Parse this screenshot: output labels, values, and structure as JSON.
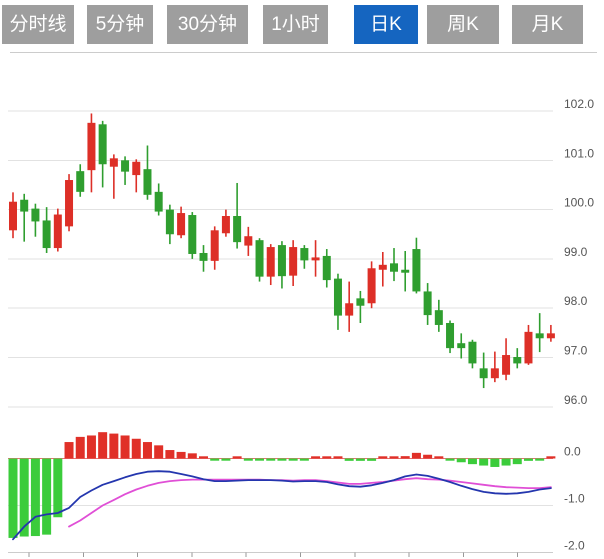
{
  "tabs": {
    "items": [
      {
        "label": "分时线",
        "selected": false
      },
      {
        "label": "5分钟",
        "selected": false
      },
      {
        "label": "30分钟",
        "selected": false
      },
      {
        "label": "1小时",
        "selected": false
      },
      {
        "label": "日K",
        "selected": true
      },
      {
        "label": "周K",
        "selected": false
      },
      {
        "label": "月K",
        "selected": false
      }
    ]
  },
  "colors": {
    "tab_bg": "#9e9e9e",
    "tab_active_bg": "#1565c0",
    "tab_text": "#ffffff",
    "divider": "#cccccc",
    "up": "#dd2f27",
    "down": "#2f9e2f",
    "macd_up": "#e03028",
    "macd_down": "#3bcc3b",
    "dif_line": "#2436ae",
    "dea_line": "#e04fd6",
    "grid": "#e2e2e2",
    "zero_line": "#e87070",
    "axis_text": "#555555",
    "x_tick": "#999999"
  },
  "chart_data": {
    "type": "candlestick",
    "panels": [
      "price",
      "macd"
    ],
    "price_axis": {
      "min": 96.0,
      "max": 102.0,
      "ticks": [
        {
          "value": 102.0,
          "label": "102.0"
        },
        {
          "value": 101.0,
          "label": "101.0"
        },
        {
          "value": 100.0,
          "label": "100.0"
        },
        {
          "value": 99.0,
          "label": "99.0"
        },
        {
          "value": 98.0,
          "label": "98.0"
        },
        {
          "value": 97.0,
          "label": "97.0"
        },
        {
          "value": 96.0,
          "label": "96.0"
        }
      ]
    },
    "macd_axis": {
      "min": -2.0,
      "max": 0.35,
      "ticks": [
        {
          "value": 0.0,
          "label": "0.0"
        },
        {
          "value": -1.0,
          "label": "-1.0"
        },
        {
          "value": -2.0,
          "label": "-2.0"
        }
      ]
    },
    "candles": [
      {
        "o": 99.58,
        "h": 100.35,
        "l": 99.42,
        "c": 100.16
      },
      {
        "o": 100.2,
        "h": 100.32,
        "l": 99.35,
        "c": 99.96
      },
      {
        "o": 100.02,
        "h": 100.12,
        "l": 99.45,
        "c": 99.76
      },
      {
        "o": 99.78,
        "h": 100.05,
        "l": 99.12,
        "c": 99.22
      },
      {
        "o": 99.22,
        "h": 100.02,
        "l": 99.15,
        "c": 99.9
      },
      {
        "o": 99.66,
        "h": 100.72,
        "l": 99.56,
        "c": 100.6
      },
      {
        "o": 100.78,
        "h": 100.92,
        "l": 100.26,
        "c": 100.36
      },
      {
        "o": 100.8,
        "h": 101.95,
        "l": 100.35,
        "c": 101.76
      },
      {
        "o": 101.73,
        "h": 101.8,
        "l": 100.45,
        "c": 100.92
      },
      {
        "o": 100.87,
        "h": 101.12,
        "l": 100.22,
        "c": 101.04
      },
      {
        "o": 101.0,
        "h": 101.08,
        "l": 100.5,
        "c": 100.77
      },
      {
        "o": 100.7,
        "h": 101.02,
        "l": 100.35,
        "c": 100.97
      },
      {
        "o": 100.82,
        "h": 101.3,
        "l": 100.2,
        "c": 100.3
      },
      {
        "o": 100.36,
        "h": 100.53,
        "l": 99.88,
        "c": 99.96
      },
      {
        "o": 100.0,
        "h": 100.1,
        "l": 99.3,
        "c": 99.5
      },
      {
        "o": 99.48,
        "h": 100.06,
        "l": 99.42,
        "c": 99.93
      },
      {
        "o": 99.89,
        "h": 99.95,
        "l": 99.0,
        "c": 99.1
      },
      {
        "o": 99.12,
        "h": 99.28,
        "l": 98.74,
        "c": 98.96
      },
      {
        "o": 98.96,
        "h": 99.66,
        "l": 98.78,
        "c": 99.58
      },
      {
        "o": 99.52,
        "h": 100.0,
        "l": 99.45,
        "c": 99.87
      },
      {
        "o": 99.87,
        "h": 100.54,
        "l": 99.21,
        "c": 99.34
      },
      {
        "o": 99.27,
        "h": 99.65,
        "l": 99.06,
        "c": 99.46
      },
      {
        "o": 99.38,
        "h": 99.42,
        "l": 98.54,
        "c": 98.64
      },
      {
        "o": 98.64,
        "h": 99.3,
        "l": 98.47,
        "c": 99.24
      },
      {
        "o": 99.28,
        "h": 99.36,
        "l": 98.4,
        "c": 98.65
      },
      {
        "o": 98.66,
        "h": 99.38,
        "l": 98.45,
        "c": 99.24
      },
      {
        "o": 99.22,
        "h": 99.28,
        "l": 98.8,
        "c": 98.97
      },
      {
        "o": 98.97,
        "h": 99.38,
        "l": 98.64,
        "c": 99.03
      },
      {
        "o": 99.06,
        "h": 99.2,
        "l": 98.42,
        "c": 98.57
      },
      {
        "o": 98.6,
        "h": 98.7,
        "l": 97.56,
        "c": 97.85
      },
      {
        "o": 97.85,
        "h": 98.54,
        "l": 97.52,
        "c": 98.1
      },
      {
        "o": 98.2,
        "h": 98.35,
        "l": 97.7,
        "c": 98.05
      },
      {
        "o": 98.1,
        "h": 98.95,
        "l": 98.0,
        "c": 98.81
      },
      {
        "o": 98.78,
        "h": 99.14,
        "l": 98.44,
        "c": 98.88
      },
      {
        "o": 98.91,
        "h": 99.22,
        "l": 98.55,
        "c": 98.74
      },
      {
        "o": 98.78,
        "h": 99.16,
        "l": 98.34,
        "c": 98.72
      },
      {
        "o": 99.2,
        "h": 99.43,
        "l": 98.3,
        "c": 98.34
      },
      {
        "o": 98.34,
        "h": 98.51,
        "l": 97.66,
        "c": 97.86
      },
      {
        "o": 97.96,
        "h": 98.17,
        "l": 97.52,
        "c": 97.66
      },
      {
        "o": 97.7,
        "h": 97.75,
        "l": 97.09,
        "c": 97.19
      },
      {
        "o": 97.29,
        "h": 97.49,
        "l": 96.98,
        "c": 97.19
      },
      {
        "o": 97.32,
        "h": 97.36,
        "l": 96.78,
        "c": 96.88
      },
      {
        "o": 96.78,
        "h": 97.1,
        "l": 96.38,
        "c": 96.58
      },
      {
        "o": 96.58,
        "h": 97.12,
        "l": 96.5,
        "c": 96.78
      },
      {
        "o": 96.65,
        "h": 97.39,
        "l": 96.54,
        "c": 97.05
      },
      {
        "o": 97.01,
        "h": 97.19,
        "l": 96.78,
        "c": 96.88
      },
      {
        "o": 96.88,
        "h": 97.66,
        "l": 96.85,
        "c": 97.52
      },
      {
        "o": 97.49,
        "h": 97.9,
        "l": 97.11,
        "c": 97.39
      },
      {
        "o": 97.39,
        "h": 97.66,
        "l": 97.32,
        "c": 97.49
      }
    ],
    "macd": {
      "histogram": [
        -1.69,
        -1.66,
        -1.65,
        -1.62,
        -1.25,
        0.35,
        0.46,
        0.49,
        0.56,
        0.53,
        0.49,
        0.42,
        0.35,
        0.28,
        0.18,
        0.14,
        0.11,
        0.03,
        -0.04,
        -0.04,
        0.02,
        -0.02,
        -0.04,
        -0.04,
        -0.04,
        -0.04,
        -0.04,
        0.01,
        0.03,
        0.01,
        -0.05,
        -0.05,
        -0.05,
        0.01,
        0.04,
        0.05,
        0.12,
        0.08,
        0.03,
        -0.03,
        -0.08,
        -0.12,
        -0.15,
        -0.18,
        -0.15,
        -0.12,
        -0.05,
        -0.02,
        0.03
      ],
      "dif": [
        -1.72,
        -1.45,
        -1.24,
        -1.19,
        -1.16,
        -1.05,
        -0.82,
        -0.68,
        -0.56,
        -0.48,
        -0.4,
        -0.33,
        -0.28,
        -0.27,
        -0.28,
        -0.33,
        -0.38,
        -0.44,
        -0.48,
        -0.48,
        -0.47,
        -0.46,
        -0.46,
        -0.46,
        -0.47,
        -0.49,
        -0.48,
        -0.48,
        -0.5,
        -0.55,
        -0.59,
        -0.6,
        -0.57,
        -0.52,
        -0.46,
        -0.38,
        -0.34,
        -0.37,
        -0.43,
        -0.5,
        -0.58,
        -0.65,
        -0.71,
        -0.74,
        -0.75,
        -0.74,
        -0.71,
        -0.66,
        -0.63
      ],
      "dea_start": 5,
      "dea": [
        -1.45,
        -1.32,
        -1.16,
        -1.0,
        -0.88,
        -0.76,
        -0.66,
        -0.58,
        -0.52,
        -0.48,
        -0.46,
        -0.45,
        -0.45,
        -0.45,
        -0.45,
        -0.45,
        -0.45,
        -0.45,
        -0.46,
        -0.46,
        -0.47,
        -0.46,
        -0.46,
        -0.48,
        -0.51,
        -0.54,
        -0.54,
        -0.52,
        -0.5,
        -0.47,
        -0.44,
        -0.42,
        -0.44,
        -0.45,
        -0.47,
        -0.5,
        -0.53,
        -0.56,
        -0.59,
        -0.61,
        -0.62,
        -0.63,
        -0.63,
        -0.61
      ]
    }
  }
}
